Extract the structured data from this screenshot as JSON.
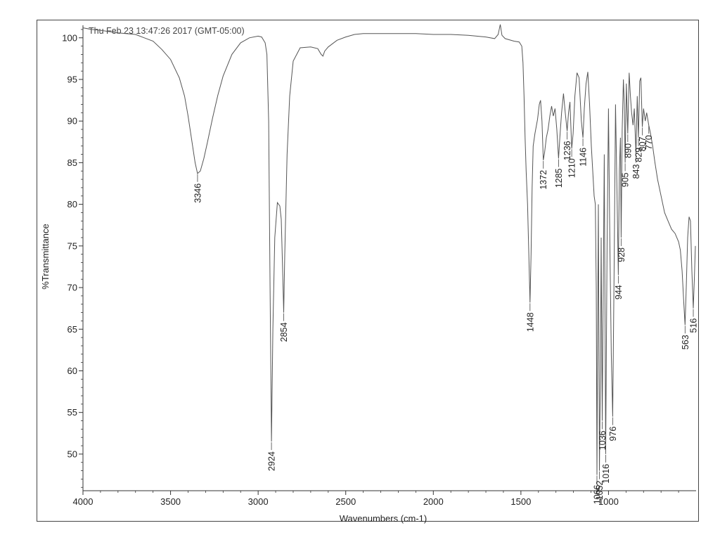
{
  "chart_data": {
    "type": "line",
    "title": "",
    "timestamp": "Thu Feb 23 13:47:26 2017 (GMT-05:00)",
    "xlabel": "Wavenumbers (cm-1)",
    "ylabel": "%Transmittance",
    "xlim": [
      4000,
      500
    ],
    "ylim": [
      45.6,
      101.5
    ],
    "x_ticks": [
      4000,
      3500,
      3000,
      2500,
      2000,
      1500,
      1000
    ],
    "y_ticks": [
      50,
      55,
      60,
      65,
      70,
      75,
      80,
      85,
      90,
      95,
      100
    ],
    "grid": false,
    "line_color": "#555555",
    "series": [
      {
        "points": [
          [
            4000,
            101.2
          ],
          [
            3950,
            101.0
          ],
          [
            3900,
            100.9
          ],
          [
            3800,
            100.6
          ],
          [
            3700,
            100.4
          ],
          [
            3650,
            100.0
          ],
          [
            3600,
            99.6
          ],
          [
            3550,
            98.6
          ],
          [
            3500,
            97.4
          ],
          [
            3450,
            95.2
          ],
          [
            3420,
            93.0
          ],
          [
            3400,
            90.6
          ],
          [
            3380,
            87.8
          ],
          [
            3360,
            85.0
          ],
          [
            3346,
            83.7
          ],
          [
            3330,
            84.0
          ],
          [
            3310,
            85.5
          ],
          [
            3290,
            87.4
          ],
          [
            3260,
            90.4
          ],
          [
            3230,
            93.1
          ],
          [
            3200,
            95.4
          ],
          [
            3150,
            98.0
          ],
          [
            3100,
            99.4
          ],
          [
            3050,
            100.0
          ],
          [
            3000,
            100.2
          ],
          [
            2980,
            100.1
          ],
          [
            2960,
            99.4
          ],
          [
            2950,
            98.0
          ],
          [
            2940,
            90.0
          ],
          [
            2932,
            70.0
          ],
          [
            2924,
            51.5
          ],
          [
            2916,
            65.0
          ],
          [
            2905,
            76.0
          ],
          [
            2890,
            80.2
          ],
          [
            2876,
            79.8
          ],
          [
            2868,
            78.2
          ],
          [
            2860,
            72.0
          ],
          [
            2854,
            67.0
          ],
          [
            2848,
            74.0
          ],
          [
            2835,
            86.0
          ],
          [
            2820,
            93.0
          ],
          [
            2800,
            97.2
          ],
          [
            2760,
            98.8
          ],
          [
            2700,
            98.9
          ],
          [
            2660,
            98.7
          ],
          [
            2640,
            98.0
          ],
          [
            2630,
            97.8
          ],
          [
            2620,
            98.4
          ],
          [
            2600,
            98.9
          ],
          [
            2550,
            99.7
          ],
          [
            2500,
            100.1
          ],
          [
            2450,
            100.4
          ],
          [
            2400,
            100.5
          ],
          [
            2300,
            100.5
          ],
          [
            2200,
            100.5
          ],
          [
            2100,
            100.5
          ],
          [
            2000,
            100.4
          ],
          [
            1900,
            100.4
          ],
          [
            1800,
            100.3
          ],
          [
            1700,
            100.1
          ],
          [
            1650,
            99.9
          ],
          [
            1630,
            100.4
          ],
          [
            1618,
            101.6
          ],
          [
            1608,
            100.3
          ],
          [
            1590,
            99.9
          ],
          [
            1540,
            99.6
          ],
          [
            1510,
            99.5
          ],
          [
            1495,
            99.0
          ],
          [
            1488,
            97.0
          ],
          [
            1482,
            93.0
          ],
          [
            1476,
            88.0
          ],
          [
            1470,
            84.0
          ],
          [
            1462,
            80.0
          ],
          [
            1455,
            74.0
          ],
          [
            1448,
            68.2
          ],
          [
            1442,
            74.0
          ],
          [
            1436,
            82.0
          ],
          [
            1430,
            87.0
          ],
          [
            1420,
            88.5
          ],
          [
            1405,
            90.2
          ],
          [
            1395,
            92.0
          ],
          [
            1388,
            92.5
          ],
          [
            1380,
            90.0
          ],
          [
            1372,
            85.3
          ],
          [
            1365,
            86.2
          ],
          [
            1355,
            88.0
          ],
          [
            1345,
            89.0
          ],
          [
            1335,
            90.6
          ],
          [
            1325,
            91.8
          ],
          [
            1315,
            90.6
          ],
          [
            1305,
            91.5
          ],
          [
            1295,
            89.0
          ],
          [
            1285,
            85.5
          ],
          [
            1278,
            88.0
          ],
          [
            1268,
            91.0
          ],
          [
            1257,
            93.3
          ],
          [
            1247,
            91.0
          ],
          [
            1236,
            88.8
          ],
          [
            1228,
            91.0
          ],
          [
            1220,
            92.3
          ],
          [
            1210,
            86.7
          ],
          [
            1202,
            88.5
          ],
          [
            1192,
            93.0
          ],
          [
            1180,
            95.8
          ],
          [
            1168,
            95.2
          ],
          [
            1155,
            90.0
          ],
          [
            1146,
            88.0
          ],
          [
            1138,
            91.5
          ],
          [
            1128,
            94.5
          ],
          [
            1118,
            95.9
          ],
          [
            1108,
            92.0
          ],
          [
            1098,
            87.0
          ],
          [
            1090,
            84.0
          ],
          [
            1082,
            81.0
          ],
          [
            1075,
            80.0
          ],
          [
            1070,
            70.0
          ],
          [
            1066,
            47.5
          ],
          [
            1062,
            65.0
          ],
          [
            1058,
            80.0
          ],
          [
            1052,
            48.0
          ],
          [
            1046,
            60.0
          ],
          [
            1042,
            76.0
          ],
          [
            1036,
            54.0
          ],
          [
            1030,
            70.0
          ],
          [
            1024,
            86.0
          ],
          [
            1016,
            50.0
          ],
          [
            1008,
            75.0
          ],
          [
            1000,
            91.5
          ],
          [
            992,
            75.0
          ],
          [
            984,
            62.0
          ],
          [
            976,
            54.5
          ],
          [
            968,
            72.0
          ],
          [
            960,
            92.0
          ],
          [
            952,
            82.0
          ],
          [
            944,
            71.5
          ],
          [
            938,
            84.0
          ],
          [
            932,
            88.0
          ],
          [
            928,
            76.0
          ],
          [
            922,
            89.0
          ],
          [
            915,
            95.0
          ],
          [
            910,
            92.0
          ],
          [
            905,
            85.0
          ],
          [
            898,
            94.5
          ],
          [
            890,
            88.5
          ],
          [
            882,
            95.8
          ],
          [
            875,
            93.0
          ],
          [
            868,
            91.0
          ],
          [
            860,
            89.5
          ],
          [
            853,
            91.5
          ],
          [
            843,
            86.0
          ],
          [
            836,
            93.0
          ],
          [
            829,
            88.0
          ],
          [
            822,
            94.8
          ],
          [
            815,
            95.2
          ],
          [
            807,
            89.3
          ],
          [
            800,
            91.5
          ],
          [
            790,
            90.0
          ],
          [
            782,
            91.0
          ],
          [
            770,
            89.5
          ],
          [
            760,
            88.5
          ],
          [
            748,
            87.0
          ],
          [
            735,
            85.0
          ],
          [
            720,
            83.0
          ],
          [
            700,
            81.0
          ],
          [
            680,
            79.0
          ],
          [
            660,
            78.0
          ],
          [
            640,
            77.0
          ],
          [
            620,
            76.5
          ],
          [
            600,
            75.5
          ],
          [
            590,
            74.5
          ],
          [
            580,
            72.0
          ],
          [
            570,
            68.0
          ],
          [
            563,
            65.5
          ],
          [
            556,
            70.0
          ],
          [
            548,
            76.0
          ],
          [
            540,
            78.5
          ],
          [
            532,
            78.0
          ],
          [
            524,
            72.0
          ],
          [
            516,
            67.5
          ],
          [
            510,
            71.0
          ],
          [
            504,
            75.0
          ]
        ]
      }
    ],
    "peaks": [
      {
        "label": "3346",
        "x": 3346,
        "y": 83.7
      },
      {
        "label": "2924",
        "x": 2924,
        "y": 51.5
      },
      {
        "label": "2854",
        "x": 2854,
        "y": 67.0
      },
      {
        "label": "1448",
        "x": 1448,
        "y": 68.2
      },
      {
        "label": "1372",
        "x": 1372,
        "y": 85.3
      },
      {
        "label": "1285",
        "x": 1285,
        "y": 85.5
      },
      {
        "label": "1236",
        "x": 1236,
        "y": 88.8
      },
      {
        "label": "1210",
        "x": 1210,
        "y": 86.7
      },
      {
        "label": "1146",
        "x": 1146,
        "y": 88.0
      },
      {
        "label": "1066",
        "x": 1066,
        "y": 47.5
      },
      {
        "label": "1052",
        "x": 1052,
        "y": 48.0
      },
      {
        "label": "1036",
        "x": 1036,
        "y": 54.0
      },
      {
        "label": "1016",
        "x": 1016,
        "y": 50.0
      },
      {
        "label": "976",
        "x": 976,
        "y": 54.5
      },
      {
        "label": "944",
        "x": 944,
        "y": 71.5
      },
      {
        "label": "928",
        "x": 928,
        "y": 76.0
      },
      {
        "label": "905",
        "x": 905,
        "y": 85.0
      },
      {
        "label": "890",
        "x": 890,
        "y": 88.5
      },
      {
        "label": "843",
        "x": 843,
        "y": 86.0
      },
      {
        "label": "829",
        "x": 829,
        "y": 88.0
      },
      {
        "label": "807",
        "x": 807,
        "y": 89.3
      },
      {
        "label": "770",
        "x": 770,
        "y": 89.5
      },
      {
        "label": "563",
        "x": 563,
        "y": 65.5
      },
      {
        "label": "516",
        "x": 516,
        "y": 67.5
      }
    ]
  }
}
